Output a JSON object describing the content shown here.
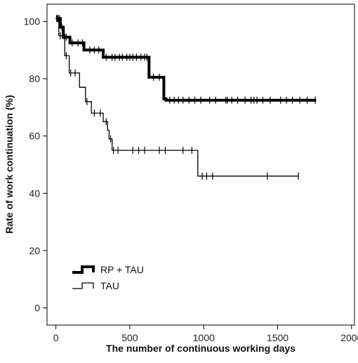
{
  "chart_data": {
    "type": "line",
    "chart_subtype": "kaplan-meier step curve",
    "title": "",
    "xlabel": "The number of continuous working days",
    "ylabel": "Rate of work continuation (%)",
    "xlim": [
      -60,
      2020
    ],
    "ylim": [
      -6,
      106
    ],
    "x_ticks": [
      0,
      500,
      1000,
      1500,
      2000
    ],
    "y_ticks": [
      0,
      20,
      40,
      60,
      80,
      100
    ],
    "grid": false,
    "legend_position": "bottom-left",
    "colors": {
      "line": "#000000",
      "background": "#ffffff"
    },
    "series": [
      {
        "name": "RP + TAU",
        "style": "thick",
        "steps": [
          [
            0,
            101
          ],
          [
            30,
            101
          ],
          [
            30,
            98
          ],
          [
            50,
            98
          ],
          [
            50,
            94.5
          ],
          [
            95,
            94.5
          ],
          [
            95,
            92.5
          ],
          [
            190,
            92.5
          ],
          [
            190,
            90
          ],
          [
            320,
            90
          ],
          [
            320,
            87.5
          ],
          [
            630,
            87.5
          ],
          [
            630,
            80.5
          ],
          [
            730,
            80.5
          ],
          [
            730,
            73
          ],
          [
            745,
            73
          ],
          [
            745,
            72.5
          ],
          [
            1760,
            72.5
          ]
        ],
        "censor_x": [
          5,
          15,
          25,
          40,
          60,
          70,
          110,
          150,
          180,
          230,
          260,
          290,
          340,
          380,
          400,
          430,
          450,
          480,
          500,
          520,
          545,
          575,
          600,
          615,
          660,
          700,
          770,
          800,
          830,
          860,
          900,
          940,
          980,
          1040,
          1080,
          1150,
          1160,
          1190,
          1230,
          1280,
          1320,
          1340,
          1360,
          1400,
          1450,
          1520,
          1560,
          1600,
          1650,
          1700,
          1755
        ]
      },
      {
        "name": "TAU",
        "style": "thin",
        "steps": [
          [
            0,
            101
          ],
          [
            20,
            101
          ],
          [
            20,
            95
          ],
          [
            60,
            95
          ],
          [
            60,
            88
          ],
          [
            90,
            88
          ],
          [
            90,
            82
          ],
          [
            160,
            82
          ],
          [
            160,
            77
          ],
          [
            200,
            77
          ],
          [
            200,
            72
          ],
          [
            240,
            72
          ],
          [
            240,
            68
          ],
          [
            320,
            68
          ],
          [
            320,
            65
          ],
          [
            350,
            65
          ],
          [
            350,
            62
          ],
          [
            360,
            62
          ],
          [
            360,
            59
          ],
          [
            380,
            59
          ],
          [
            380,
            55
          ],
          [
            960,
            55
          ],
          [
            960,
            46
          ],
          [
            1640,
            46
          ]
        ],
        "censor_x": [
          10,
          30,
          50,
          70,
          100,
          130,
          210,
          260,
          300,
          340,
          370,
          390,
          420,
          520,
          560,
          600,
          700,
          740,
          860,
          920,
          990,
          1020,
          1060,
          1430,
          1640
        ]
      }
    ]
  }
}
